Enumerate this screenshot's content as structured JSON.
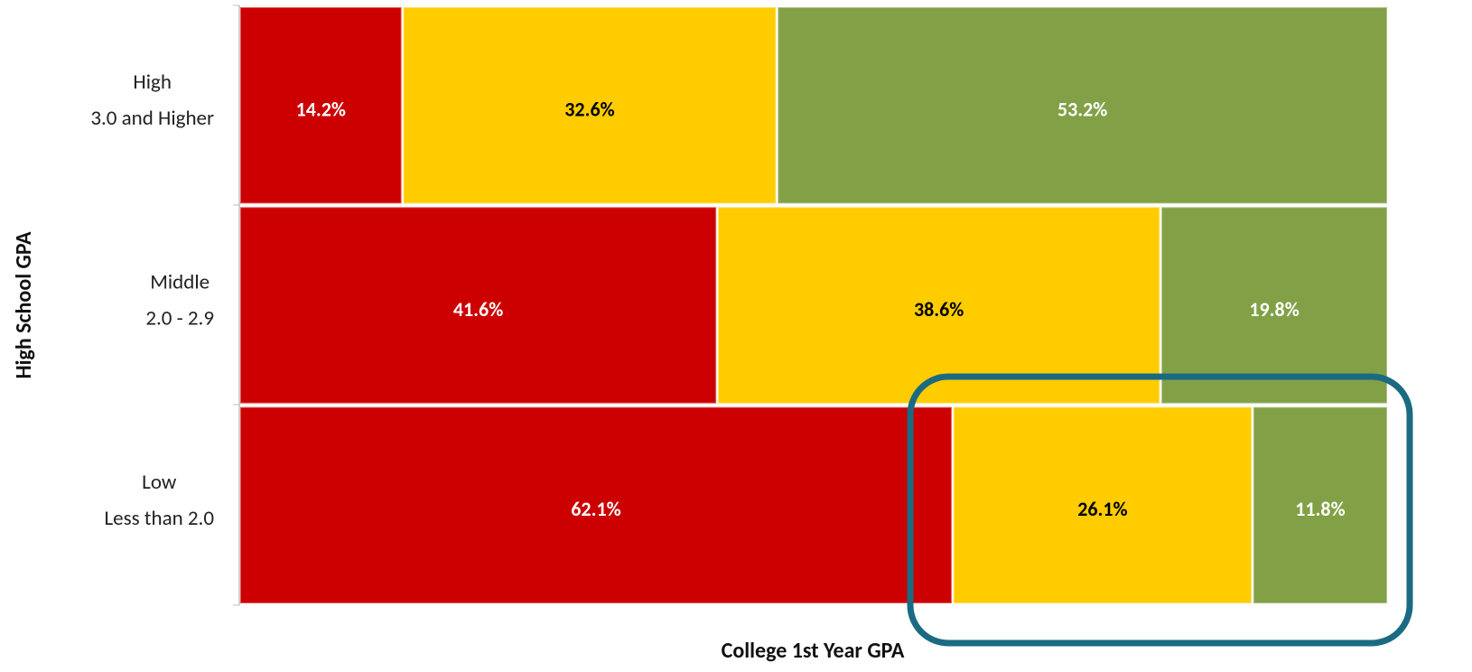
{
  "chart_data": {
    "type": "stacked_barh",
    "categories": [
      [
        "High",
        "3.0 and Higher"
      ],
      [
        "Middle",
        "2.0 - 2.9"
      ],
      [
        "Low",
        "Less than 2.0"
      ]
    ],
    "series": [
      {
        "color": "#cc0000",
        "label_color": "#ffffff",
        "values": [
          14.2,
          41.6,
          62.1
        ],
        "value_labels": [
          "14.2%",
          "41.6%",
          "62.1%"
        ]
      },
      {
        "color": "#ffcc00",
        "label_color": "#000000",
        "values": [
          32.6,
          38.6,
          26.1
        ],
        "value_labels": [
          "32.6%",
          "38.6%",
          "26.1%"
        ]
      },
      {
        "color": "#82a046",
        "label_color": "#ffffff",
        "values": [
          53.2,
          19.8,
          11.8
        ],
        "value_labels": [
          "53.2%",
          "19.8%",
          "11.8%"
        ]
      }
    ],
    "xlim": [
      0,
      100
    ],
    "xlabel": "College 1st Year GPA",
    "ylabel": "High School GPA"
  }
}
